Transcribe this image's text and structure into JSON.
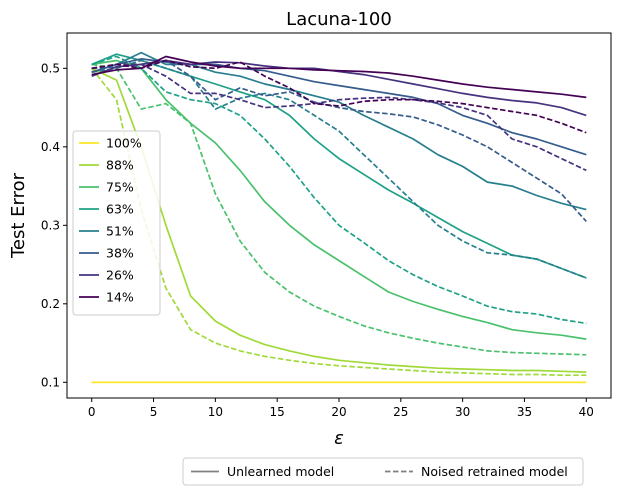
{
  "chart_data": {
    "type": "line",
    "title": "Lacuna-100",
    "xlabel": "ε",
    "ylabel": "Test Error",
    "xlim": [
      -2,
      42
    ],
    "ylim": [
      0.08,
      0.545
    ],
    "xticks": [
      0,
      5,
      10,
      15,
      20,
      25,
      30,
      35,
      40
    ],
    "yticks": [
      0.1,
      0.2,
      0.3,
      0.4,
      0.5
    ],
    "grid": false,
    "x": [
      0,
      2,
      4,
      6,
      8,
      10,
      12,
      14,
      16,
      18,
      20,
      22,
      24,
      26,
      28,
      30,
      32,
      34,
      36,
      38,
      40
    ],
    "series": [
      {
        "name": "100%",
        "color": "#fde725",
        "style": "solid",
        "values": [
          0.1,
          0.1,
          0.1,
          0.1,
          0.1,
          0.1,
          0.1,
          0.1,
          0.1,
          0.1,
          0.1,
          0.1,
          0.1,
          0.1,
          0.1,
          0.1,
          0.1,
          0.1,
          0.1,
          0.1,
          0.1
        ]
      },
      {
        "name": "100%",
        "color": "#fde725",
        "style": "dashed",
        "values": [
          0.1,
          0.1,
          0.1,
          0.1,
          0.1,
          0.1,
          0.1,
          0.1,
          0.1,
          0.1,
          0.1,
          0.1,
          0.1,
          0.1,
          0.1,
          0.1,
          0.1,
          0.1,
          0.1,
          0.1,
          0.1
        ]
      },
      {
        "name": "88%",
        "color": "#a0da39",
        "style": "solid",
        "values": [
          0.5,
          0.485,
          0.4,
          0.3,
          0.21,
          0.178,
          0.16,
          0.148,
          0.14,
          0.133,
          0.128,
          0.125,
          0.122,
          0.12,
          0.118,
          0.117,
          0.116,
          0.115,
          0.115,
          0.114,
          0.113
        ]
      },
      {
        "name": "88%",
        "color": "#a0da39",
        "style": "dashed",
        "values": [
          0.5,
          0.46,
          0.32,
          0.22,
          0.167,
          0.15,
          0.14,
          0.133,
          0.128,
          0.124,
          0.121,
          0.119,
          0.117,
          0.115,
          0.113,
          0.112,
          0.111,
          0.11,
          0.11,
          0.109,
          0.109
        ]
      },
      {
        "name": "75%",
        "color": "#4ac16d",
        "style": "solid",
        "values": [
          0.505,
          0.51,
          0.5,
          0.46,
          0.43,
          0.405,
          0.37,
          0.33,
          0.3,
          0.275,
          0.255,
          0.235,
          0.215,
          0.203,
          0.193,
          0.184,
          0.176,
          0.167,
          0.163,
          0.16,
          0.155
        ]
      },
      {
        "name": "75%",
        "color": "#4ac16d",
        "style": "dashed",
        "values": [
          0.505,
          0.5,
          0.448,
          0.455,
          0.43,
          0.34,
          0.28,
          0.24,
          0.215,
          0.197,
          0.184,
          0.172,
          0.163,
          0.156,
          0.15,
          0.145,
          0.14,
          0.138,
          0.137,
          0.136,
          0.135
        ]
      },
      {
        "name": "63%",
        "color": "#1fa187",
        "style": "solid",
        "values": [
          0.505,
          0.518,
          0.51,
          0.5,
          0.49,
          0.48,
          0.47,
          0.46,
          0.44,
          0.41,
          0.385,
          0.365,
          0.345,
          0.328,
          0.31,
          0.292,
          0.277,
          0.262,
          0.257,
          0.245,
          0.233
        ]
      },
      {
        "name": "63%",
        "color": "#1fa187",
        "style": "dashed",
        "values": [
          0.505,
          0.515,
          0.5,
          0.47,
          0.46,
          0.455,
          0.44,
          0.41,
          0.375,
          0.335,
          0.3,
          0.278,
          0.255,
          0.237,
          0.222,
          0.21,
          0.197,
          0.19,
          0.187,
          0.18,
          0.175
        ]
      },
      {
        "name": "51%",
        "color": "#277f8e",
        "style": "solid",
        "values": [
          0.495,
          0.505,
          0.52,
          0.505,
          0.505,
          0.495,
          0.49,
          0.48,
          0.473,
          0.465,
          0.457,
          0.44,
          0.425,
          0.41,
          0.39,
          0.375,
          0.355,
          0.35,
          0.338,
          0.328,
          0.32
        ]
      },
      {
        "name": "51%",
        "color": "#277f8e",
        "style": "dashed",
        "values": [
          0.495,
          0.5,
          0.51,
          0.5,
          0.49,
          0.448,
          0.462,
          0.468,
          0.46,
          0.44,
          0.42,
          0.39,
          0.36,
          0.33,
          0.3,
          0.28,
          0.265,
          0.262,
          0.257,
          0.245,
          0.233
        ]
      },
      {
        "name": "38%",
        "color": "#365c8d",
        "style": "solid",
        "values": [
          0.495,
          0.505,
          0.512,
          0.508,
          0.505,
          0.505,
          0.5,
          0.497,
          0.49,
          0.483,
          0.478,
          0.473,
          0.468,
          0.463,
          0.455,
          0.44,
          0.43,
          0.418,
          0.41,
          0.4,
          0.39
        ]
      },
      {
        "name": "38%",
        "color": "#365c8d",
        "style": "dashed",
        "values": [
          0.5,
          0.502,
          0.505,
          0.51,
          0.49,
          0.46,
          0.475,
          0.465,
          0.47,
          0.457,
          0.45,
          0.445,
          0.442,
          0.438,
          0.428,
          0.415,
          0.4,
          0.38,
          0.36,
          0.34,
          0.305
        ]
      },
      {
        "name": "26%",
        "color": "#46327e",
        "style": "solid",
        "values": [
          0.49,
          0.502,
          0.505,
          0.51,
          0.505,
          0.508,
          0.507,
          0.503,
          0.5,
          0.5,
          0.496,
          0.492,
          0.486,
          0.48,
          0.474,
          0.468,
          0.463,
          0.459,
          0.456,
          0.45,
          0.44
        ]
      },
      {
        "name": "26%",
        "color": "#46327e",
        "style": "dashed",
        "values": [
          0.5,
          0.505,
          0.505,
          0.49,
          0.468,
          0.468,
          0.46,
          0.45,
          0.452,
          0.455,
          0.46,
          0.462,
          0.463,
          0.46,
          0.456,
          0.45,
          0.44,
          0.41,
          0.4,
          0.385,
          0.37
        ]
      },
      {
        "name": "14%",
        "color": "#440154",
        "style": "solid",
        "values": [
          0.492,
          0.498,
          0.5,
          0.515,
          0.508,
          0.503,
          0.5,
          0.5,
          0.5,
          0.498,
          0.497,
          0.496,
          0.494,
          0.49,
          0.485,
          0.48,
          0.476,
          0.473,
          0.47,
          0.467,
          0.463
        ]
      },
      {
        "name": "14%",
        "color": "#440154",
        "style": "dashed",
        "values": [
          0.5,
          0.505,
          0.5,
          0.51,
          0.502,
          0.5,
          0.508,
          0.49,
          0.475,
          0.455,
          0.452,
          0.458,
          0.46,
          0.46,
          0.458,
          0.455,
          0.45,
          0.445,
          0.44,
          0.43,
          0.418
        ]
      }
    ],
    "percent_legend": {
      "placement": "center-left",
      "entries": [
        {
          "label": "100%",
          "color": "#fde725"
        },
        {
          "label": "88%",
          "color": "#a0da39"
        },
        {
          "label": "75%",
          "color": "#4ac16d"
        },
        {
          "label": "63%",
          "color": "#1fa187"
        },
        {
          "label": "51%",
          "color": "#277f8e"
        },
        {
          "label": "38%",
          "color": "#365c8d"
        },
        {
          "label": "26%",
          "color": "#46327e"
        },
        {
          "label": "14%",
          "color": "#440154"
        }
      ]
    },
    "style_legend": {
      "placement": "bottom-right below axes",
      "entries": [
        {
          "label": "Unlearned model",
          "style": "solid",
          "color": "#808080"
        },
        {
          "label": "Noised retrained model",
          "style": "dashed",
          "color": "#808080"
        }
      ]
    }
  }
}
